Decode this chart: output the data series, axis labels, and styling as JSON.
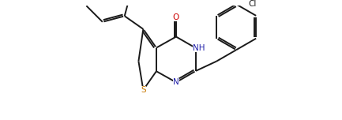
{
  "bg_color": "#ffffff",
  "bond_color": "#1a1a1a",
  "atom_colors": {
    "S": "#c87800",
    "N": "#2020aa",
    "O": "#cc0000",
    "Cl": "#1a1a1a"
  },
  "figsize": [
    4.33,
    1.52
  ],
  "dpi": 100,
  "lw": 1.4,
  "font_size": 7.5
}
